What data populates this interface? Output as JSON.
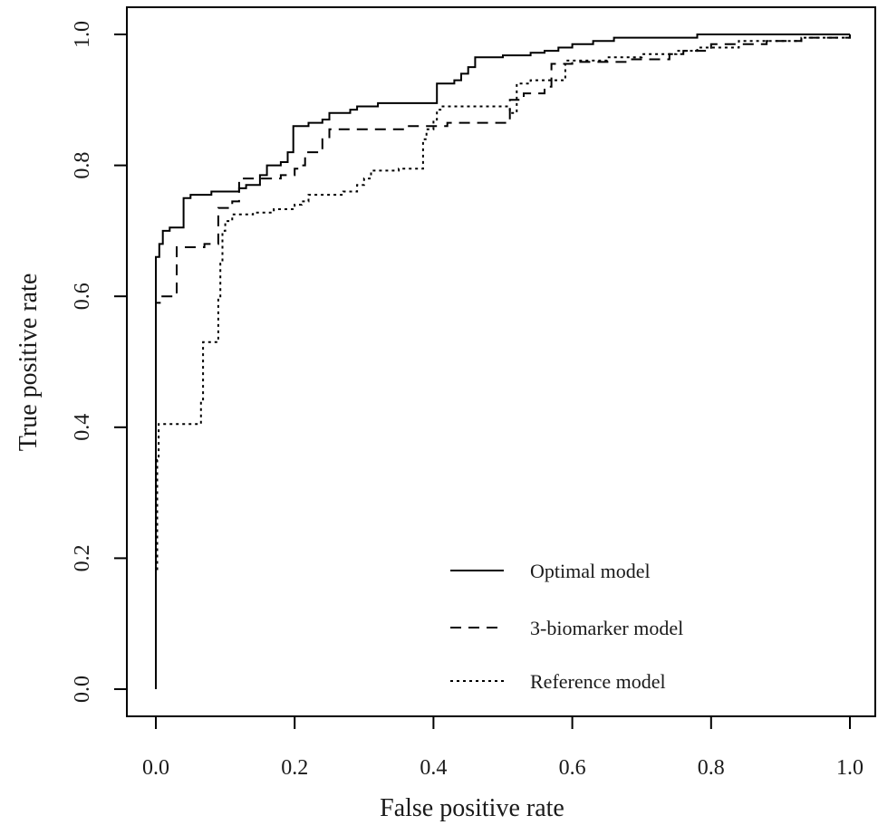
{
  "chart_data": {
    "type": "line",
    "title": "",
    "xlabel": "False positive rate",
    "ylabel": "True positive  rate",
    "xlim": [
      0,
      1
    ],
    "ylim": [
      0,
      1
    ],
    "xticks": [
      "0.0",
      "0.2",
      "0.4",
      "0.6",
      "0.8",
      "1.0"
    ],
    "yticks": [
      "0.0",
      "0.2",
      "0.4",
      "0.6",
      "0.8",
      "1.0"
    ],
    "grid": false,
    "legend_position": "bottom-right",
    "series": [
      {
        "name": "Optimal model",
        "style": "solid",
        "color": "#000000",
        "points": [
          [
            0,
            0
          ],
          [
            0,
            0.66
          ],
          [
            0.005,
            0.66
          ],
          [
            0.005,
            0.68
          ],
          [
            0.01,
            0.68
          ],
          [
            0.01,
            0.7
          ],
          [
            0.02,
            0.7
          ],
          [
            0.02,
            0.705
          ],
          [
            0.04,
            0.705
          ],
          [
            0.04,
            0.75
          ],
          [
            0.05,
            0.75
          ],
          [
            0.05,
            0.755
          ],
          [
            0.08,
            0.755
          ],
          [
            0.08,
            0.76
          ],
          [
            0.12,
            0.76
          ],
          [
            0.12,
            0.765
          ],
          [
            0.13,
            0.765
          ],
          [
            0.13,
            0.77
          ],
          [
            0.15,
            0.77
          ],
          [
            0.15,
            0.785
          ],
          [
            0.16,
            0.785
          ],
          [
            0.16,
            0.8
          ],
          [
            0.18,
            0.8
          ],
          [
            0.18,
            0.805
          ],
          [
            0.19,
            0.805
          ],
          [
            0.19,
            0.82
          ],
          [
            0.198,
            0.82
          ],
          [
            0.198,
            0.86
          ],
          [
            0.22,
            0.86
          ],
          [
            0.22,
            0.865
          ],
          [
            0.24,
            0.865
          ],
          [
            0.24,
            0.87
          ],
          [
            0.25,
            0.87
          ],
          [
            0.25,
            0.88
          ],
          [
            0.28,
            0.88
          ],
          [
            0.28,
            0.885
          ],
          [
            0.29,
            0.885
          ],
          [
            0.29,
            0.89
          ],
          [
            0.32,
            0.89
          ],
          [
            0.32,
            0.895
          ],
          [
            0.405,
            0.895
          ],
          [
            0.405,
            0.925
          ],
          [
            0.43,
            0.925
          ],
          [
            0.43,
            0.93
          ],
          [
            0.44,
            0.93
          ],
          [
            0.44,
            0.94
          ],
          [
            0.45,
            0.94
          ],
          [
            0.45,
            0.95
          ],
          [
            0.46,
            0.95
          ],
          [
            0.46,
            0.965
          ],
          [
            0.5,
            0.965
          ],
          [
            0.5,
            0.968
          ],
          [
            0.54,
            0.968
          ],
          [
            0.54,
            0.972
          ],
          [
            0.56,
            0.972
          ],
          [
            0.56,
            0.975
          ],
          [
            0.58,
            0.975
          ],
          [
            0.58,
            0.98
          ],
          [
            0.6,
            0.98
          ],
          [
            0.6,
            0.985
          ],
          [
            0.63,
            0.985
          ],
          [
            0.63,
            0.99
          ],
          [
            0.66,
            0.99
          ],
          [
            0.66,
            0.995
          ],
          [
            0.78,
            0.995
          ],
          [
            0.78,
            1.0
          ],
          [
            1.0,
            1.0
          ]
        ]
      },
      {
        "name": "3-biomarker model",
        "style": "dashed",
        "color": "#000000",
        "points": [
          [
            0,
            0
          ],
          [
            0,
            0.59
          ],
          [
            0.008,
            0.59
          ],
          [
            0.008,
            0.6
          ],
          [
            0.03,
            0.6
          ],
          [
            0.03,
            0.675
          ],
          [
            0.07,
            0.675
          ],
          [
            0.07,
            0.68
          ],
          [
            0.09,
            0.68
          ],
          [
            0.09,
            0.735
          ],
          [
            0.11,
            0.735
          ],
          [
            0.11,
            0.745
          ],
          [
            0.12,
            0.745
          ],
          [
            0.12,
            0.78
          ],
          [
            0.18,
            0.78
          ],
          [
            0.18,
            0.785
          ],
          [
            0.2,
            0.785
          ],
          [
            0.2,
            0.795
          ],
          [
            0.21,
            0.795
          ],
          [
            0.21,
            0.8
          ],
          [
            0.215,
            0.8
          ],
          [
            0.215,
            0.82
          ],
          [
            0.24,
            0.82
          ],
          [
            0.24,
            0.84
          ],
          [
            0.25,
            0.84
          ],
          [
            0.25,
            0.855
          ],
          [
            0.36,
            0.855
          ],
          [
            0.36,
            0.86
          ],
          [
            0.42,
            0.86
          ],
          [
            0.42,
            0.865
          ],
          [
            0.51,
            0.865
          ],
          [
            0.51,
            0.9
          ],
          [
            0.53,
            0.9
          ],
          [
            0.53,
            0.91
          ],
          [
            0.56,
            0.91
          ],
          [
            0.56,
            0.92
          ],
          [
            0.57,
            0.92
          ],
          [
            0.57,
            0.955
          ],
          [
            0.6,
            0.955
          ],
          [
            0.6,
            0.958
          ],
          [
            0.68,
            0.958
          ],
          [
            0.68,
            0.962
          ],
          [
            0.74,
            0.962
          ],
          [
            0.74,
            0.97
          ],
          [
            0.76,
            0.97
          ],
          [
            0.76,
            0.975
          ],
          [
            0.8,
            0.975
          ],
          [
            0.8,
            0.985
          ],
          [
            0.88,
            0.985
          ],
          [
            0.88,
            0.99
          ],
          [
            0.93,
            0.99
          ],
          [
            0.93,
            0.995
          ],
          [
            1.0,
            0.995
          ],
          [
            1.0,
            1.0
          ]
        ]
      },
      {
        "name": "Reference model",
        "style": "dotted",
        "color": "#000000",
        "points": [
          [
            0,
            0
          ],
          [
            0,
            0.18
          ],
          [
            0.002,
            0.18
          ],
          [
            0.002,
            0.35
          ],
          [
            0.004,
            0.35
          ],
          [
            0.004,
            0.405
          ],
          [
            0.065,
            0.405
          ],
          [
            0.065,
            0.44
          ],
          [
            0.068,
            0.44
          ],
          [
            0.068,
            0.53
          ],
          [
            0.09,
            0.53
          ],
          [
            0.09,
            0.6
          ],
          [
            0.093,
            0.6
          ],
          [
            0.093,
            0.65
          ],
          [
            0.096,
            0.65
          ],
          [
            0.096,
            0.7
          ],
          [
            0.1,
            0.7
          ],
          [
            0.1,
            0.715
          ],
          [
            0.11,
            0.715
          ],
          [
            0.11,
            0.725
          ],
          [
            0.14,
            0.725
          ],
          [
            0.14,
            0.728
          ],
          [
            0.17,
            0.728
          ],
          [
            0.17,
            0.733
          ],
          [
            0.2,
            0.733
          ],
          [
            0.2,
            0.74
          ],
          [
            0.21,
            0.74
          ],
          [
            0.21,
            0.745
          ],
          [
            0.22,
            0.745
          ],
          [
            0.22,
            0.755
          ],
          [
            0.27,
            0.755
          ],
          [
            0.27,
            0.76
          ],
          [
            0.29,
            0.76
          ],
          [
            0.29,
            0.77
          ],
          [
            0.3,
            0.77
          ],
          [
            0.3,
            0.78
          ],
          [
            0.31,
            0.78
          ],
          [
            0.31,
            0.792
          ],
          [
            0.35,
            0.792
          ],
          [
            0.35,
            0.795
          ],
          [
            0.385,
            0.795
          ],
          [
            0.385,
            0.84
          ],
          [
            0.39,
            0.84
          ],
          [
            0.39,
            0.855
          ],
          [
            0.4,
            0.855
          ],
          [
            0.4,
            0.87
          ],
          [
            0.405,
            0.87
          ],
          [
            0.405,
            0.885
          ],
          [
            0.41,
            0.885
          ],
          [
            0.41,
            0.89
          ],
          [
            0.51,
            0.89
          ],
          [
            0.51,
            0.88
          ],
          [
            0.52,
            0.88
          ],
          [
            0.52,
            0.925
          ],
          [
            0.54,
            0.925
          ],
          [
            0.54,
            0.93
          ],
          [
            0.59,
            0.93
          ],
          [
            0.59,
            0.96
          ],
          [
            0.65,
            0.96
          ],
          [
            0.65,
            0.965
          ],
          [
            0.7,
            0.965
          ],
          [
            0.7,
            0.97
          ],
          [
            0.75,
            0.97
          ],
          [
            0.75,
            0.975
          ],
          [
            0.78,
            0.975
          ],
          [
            0.78,
            0.98
          ],
          [
            0.84,
            0.98
          ],
          [
            0.84,
            0.99
          ],
          [
            0.93,
            0.99
          ],
          [
            0.93,
            0.995
          ],
          [
            1.0,
            0.995
          ],
          [
            1.0,
            1.0
          ]
        ]
      }
    ]
  }
}
